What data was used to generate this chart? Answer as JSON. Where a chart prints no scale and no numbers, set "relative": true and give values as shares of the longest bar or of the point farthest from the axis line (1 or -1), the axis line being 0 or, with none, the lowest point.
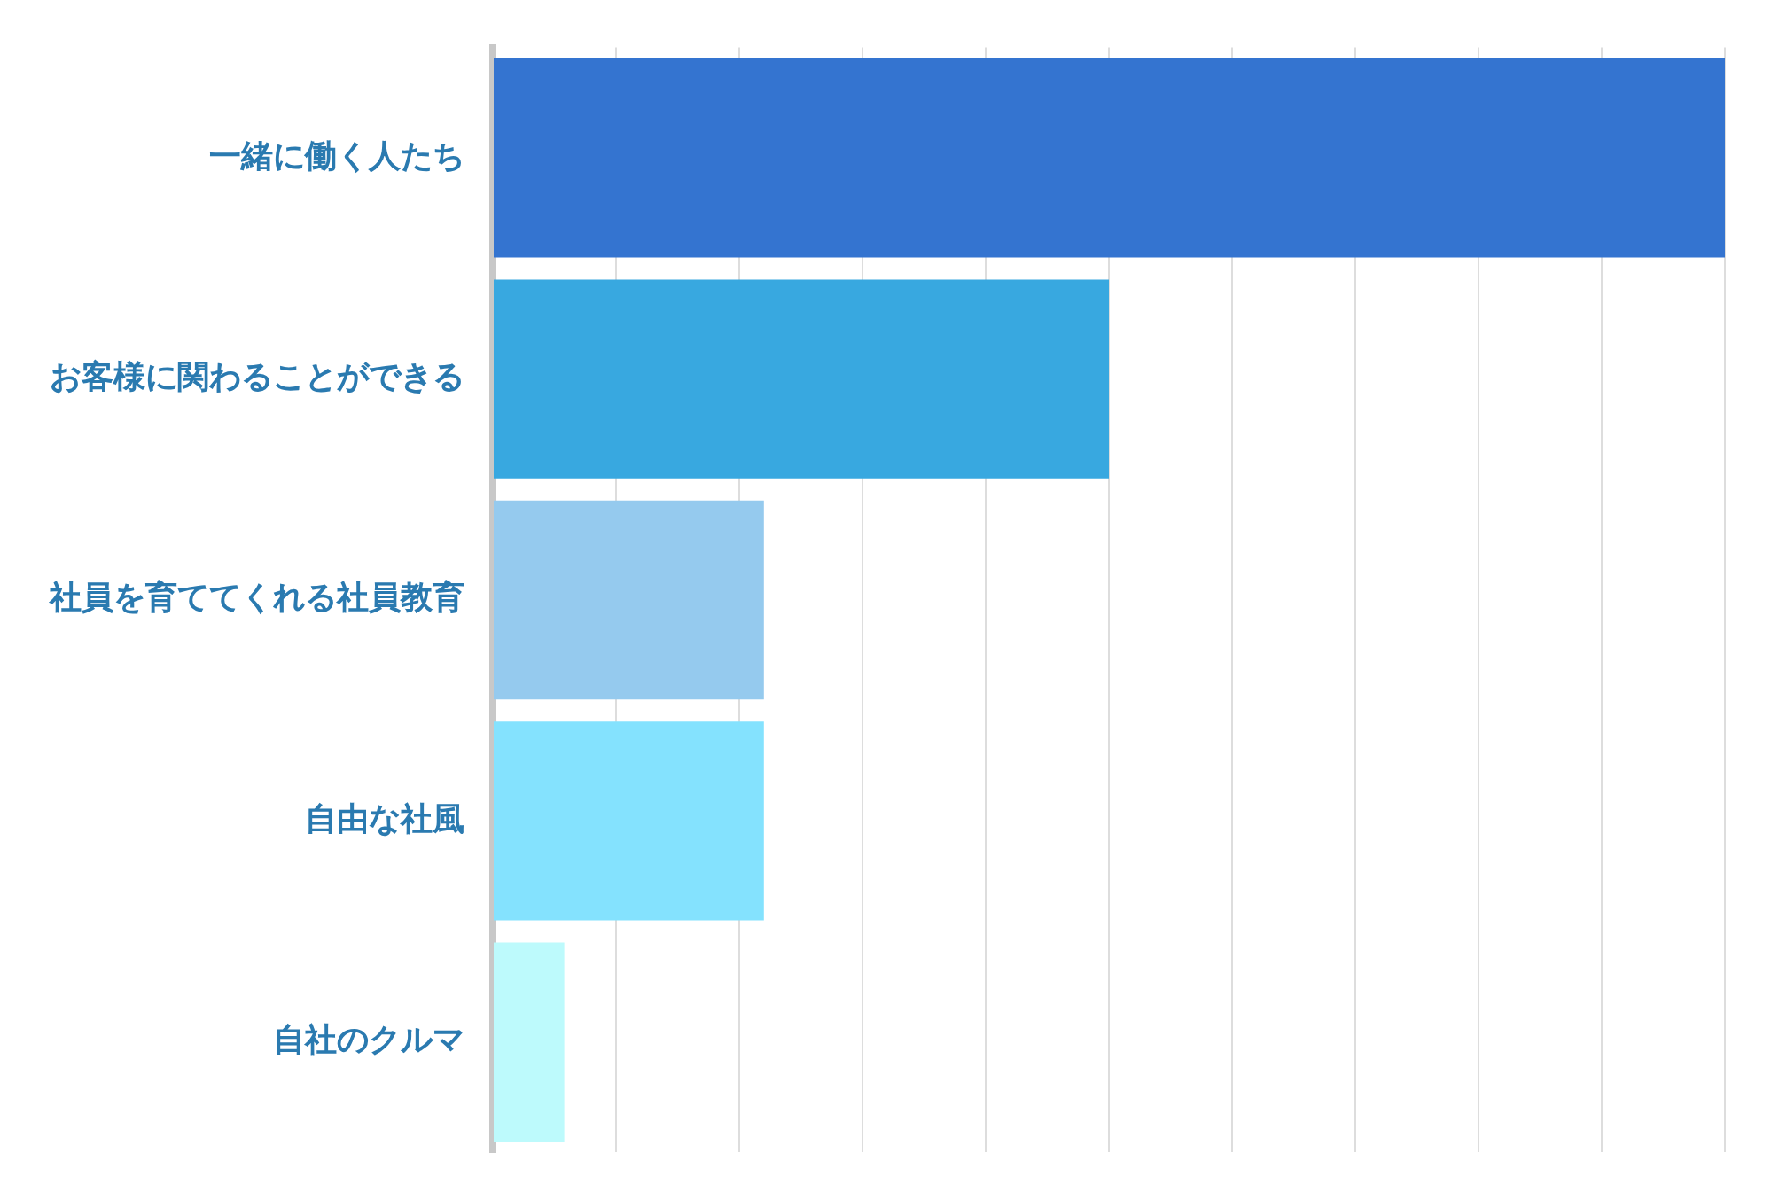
{
  "chart_data": {
    "type": "bar",
    "orientation": "horizontal",
    "relative": true,
    "grid": "x",
    "categories": [
      "一緒に働く人たち",
      "お客様に関わることができる",
      "社員を育ててくれる社員教育",
      "自由な社風",
      "自社のクルマ"
    ],
    "values": [
      1,
      0.5,
      0.22,
      0.22,
      0.058
    ],
    "colors": [
      "#3474d0",
      "#38a8e0",
      "#95caee",
      "#84e2fe",
      "#bdfafc"
    ]
  }
}
